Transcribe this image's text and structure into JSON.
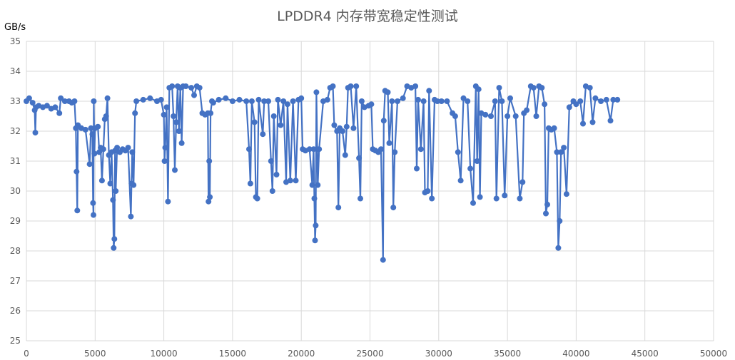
{
  "chart_data": {
    "type": "line",
    "title": "LPDDR4 内存带宽稳定性测试",
    "ylabel": "GB/s",
    "xlabel": "",
    "xlim": [
      0,
      50000
    ],
    "ylim": [
      25,
      35
    ],
    "x_ticks": [
      "0",
      "5000",
      "10000",
      "15000",
      "20000",
      "25000",
      "30000",
      "35000",
      "40000",
      "45000",
      "50000"
    ],
    "y_ticks": [
      "25",
      "26",
      "27",
      "28",
      "29",
      "30",
      "31",
      "32",
      "33",
      "34",
      "35"
    ],
    "grid": true,
    "legend": "none",
    "series": [
      {
        "color": "#4472c4",
        "marker": "circle",
        "points": [
          [
            0,
            33.0
          ],
          [
            200,
            33.1
          ],
          [
            450,
            32.95
          ],
          [
            600,
            32.7
          ],
          [
            650,
            31.95
          ],
          [
            700,
            32.8
          ],
          [
            900,
            32.85
          ],
          [
            1200,
            32.8
          ],
          [
            1500,
            32.85
          ],
          [
            1800,
            32.75
          ],
          [
            2100,
            32.8
          ],
          [
            2400,
            32.6
          ],
          [
            2500,
            33.1
          ],
          [
            2800,
            33.0
          ],
          [
            3100,
            33.0
          ],
          [
            3300,
            32.95
          ],
          [
            3500,
            33.0
          ],
          [
            3600,
            32.1
          ],
          [
            3650,
            30.65
          ],
          [
            3700,
            29.35
          ],
          [
            3750,
            32.2
          ],
          [
            4000,
            32.1
          ],
          [
            4300,
            32.05
          ],
          [
            4600,
            30.9
          ],
          [
            4700,
            32.1
          ],
          [
            4800,
            31.9
          ],
          [
            4850,
            29.6
          ],
          [
            4880,
            29.2
          ],
          [
            4900,
            33.0
          ],
          [
            4950,
            31.25
          ],
          [
            5000,
            32.1
          ],
          [
            5200,
            32.15
          ],
          [
            5300,
            31.3
          ],
          [
            5400,
            31.45
          ],
          [
            5500,
            30.35
          ],
          [
            5600,
            31.4
          ],
          [
            5700,
            32.4
          ],
          [
            5800,
            32.5
          ],
          [
            5900,
            33.1
          ],
          [
            6000,
            31.2
          ],
          [
            6100,
            30.25
          ],
          [
            6200,
            31.3
          ],
          [
            6300,
            29.7
          ],
          [
            6350,
            28.1
          ],
          [
            6400,
            28.4
          ],
          [
            6450,
            31.35
          ],
          [
            6500,
            30.0
          ],
          [
            6600,
            31.45
          ],
          [
            6800,
            31.3
          ],
          [
            7000,
            31.4
          ],
          [
            7200,
            31.35
          ],
          [
            7400,
            31.45
          ],
          [
            7600,
            29.15
          ],
          [
            7650,
            30.25
          ],
          [
            7700,
            31.3
          ],
          [
            7800,
            30.2
          ],
          [
            7900,
            32.6
          ],
          [
            8000,
            33.0
          ],
          [
            8500,
            33.05
          ],
          [
            9000,
            33.1
          ],
          [
            9500,
            33.0
          ],
          [
            9800,
            33.05
          ],
          [
            10000,
            32.55
          ],
          [
            10050,
            31.0
          ],
          [
            10100,
            31.45
          ],
          [
            10200,
            32.8
          ],
          [
            10300,
            29.65
          ],
          [
            10400,
            33.45
          ],
          [
            10600,
            33.5
          ],
          [
            10700,
            32.5
          ],
          [
            10800,
            30.7
          ],
          [
            10900,
            32.3
          ],
          [
            11000,
            33.5
          ],
          [
            11100,
            32.0
          ],
          [
            11200,
            33.45
          ],
          [
            11300,
            31.6
          ],
          [
            11400,
            33.5
          ],
          [
            11600,
            33.5
          ],
          [
            12000,
            33.45
          ],
          [
            12200,
            33.2
          ],
          [
            12400,
            33.5
          ],
          [
            12600,
            33.45
          ],
          [
            12800,
            32.6
          ],
          [
            13000,
            32.55
          ],
          [
            13200,
            32.6
          ],
          [
            13250,
            29.65
          ],
          [
            13300,
            31.0
          ],
          [
            13350,
            29.8
          ],
          [
            13400,
            32.6
          ],
          [
            13500,
            33.0
          ],
          [
            13600,
            32.95
          ],
          [
            14000,
            33.05
          ],
          [
            14500,
            33.1
          ],
          [
            15000,
            33.0
          ],
          [
            15500,
            33.05
          ],
          [
            16000,
            33.0
          ],
          [
            16200,
            31.4
          ],
          [
            16300,
            30.25
          ],
          [
            16400,
            33.0
          ],
          [
            16600,
            32.3
          ],
          [
            16700,
            29.8
          ],
          [
            16800,
            29.75
          ],
          [
            16900,
            33.05
          ],
          [
            17200,
            31.9
          ],
          [
            17300,
            33.0
          ],
          [
            17600,
            33.0
          ],
          [
            17800,
            31.0
          ],
          [
            17900,
            30.0
          ],
          [
            18000,
            32.5
          ],
          [
            18200,
            30.55
          ],
          [
            18300,
            33.05
          ],
          [
            18500,
            32.2
          ],
          [
            18700,
            33.0
          ],
          [
            18900,
            30.3
          ],
          [
            19000,
            32.9
          ],
          [
            19200,
            30.35
          ],
          [
            19400,
            33.0
          ],
          [
            19600,
            30.35
          ],
          [
            19800,
            33.05
          ],
          [
            20000,
            33.1
          ],
          [
            20100,
            31.4
          ],
          [
            20300,
            31.35
          ],
          [
            20600,
            31.4
          ],
          [
            20800,
            30.2
          ],
          [
            20900,
            31.4
          ],
          [
            20950,
            29.75
          ],
          [
            21000,
            28.35
          ],
          [
            21050,
            28.85
          ],
          [
            21100,
            33.3
          ],
          [
            21200,
            30.2
          ],
          [
            21300,
            31.4
          ],
          [
            21600,
            33.0
          ],
          [
            21900,
            33.05
          ],
          [
            22100,
            33.45
          ],
          [
            22300,
            33.5
          ],
          [
            22400,
            32.2
          ],
          [
            22600,
            32.0
          ],
          [
            22700,
            29.45
          ],
          [
            22800,
            32.1
          ],
          [
            23000,
            32.0
          ],
          [
            23200,
            31.2
          ],
          [
            23300,
            32.15
          ],
          [
            23400,
            33.45
          ],
          [
            23600,
            33.5
          ],
          [
            23800,
            32.1
          ],
          [
            24000,
            33.5
          ],
          [
            24200,
            31.1
          ],
          [
            24300,
            29.75
          ],
          [
            24400,
            33.0
          ],
          [
            24600,
            32.8
          ],
          [
            24900,
            32.85
          ],
          [
            25100,
            32.9
          ],
          [
            25200,
            31.4
          ],
          [
            25400,
            31.35
          ],
          [
            25600,
            31.3
          ],
          [
            25800,
            31.4
          ],
          [
            25950,
            27.7
          ],
          [
            26000,
            32.35
          ],
          [
            26100,
            33.35
          ],
          [
            26300,
            33.3
          ],
          [
            26400,
            31.6
          ],
          [
            26600,
            33.0
          ],
          [
            26700,
            29.45
          ],
          [
            26800,
            31.3
          ],
          [
            27000,
            33.0
          ],
          [
            27400,
            33.1
          ],
          [
            27700,
            33.5
          ],
          [
            28000,
            33.45
          ],
          [
            28300,
            33.5
          ],
          [
            28400,
            30.75
          ],
          [
            28500,
            33.05
          ],
          [
            28700,
            31.4
          ],
          [
            28900,
            33.0
          ],
          [
            29000,
            29.95
          ],
          [
            29200,
            30.0
          ],
          [
            29300,
            33.35
          ],
          [
            29500,
            29.75
          ],
          [
            29700,
            33.05
          ],
          [
            29900,
            33.0
          ],
          [
            30200,
            33.0
          ],
          [
            30600,
            33.0
          ],
          [
            31000,
            32.6
          ],
          [
            31200,
            32.5
          ],
          [
            31400,
            31.3
          ],
          [
            31600,
            30.35
          ],
          [
            31800,
            33.1
          ],
          [
            32100,
            33.0
          ],
          [
            32300,
            30.75
          ],
          [
            32500,
            29.6
          ],
          [
            32700,
            33.5
          ],
          [
            32800,
            31.0
          ],
          [
            32900,
            33.4
          ],
          [
            33000,
            29.8
          ],
          [
            33100,
            32.6
          ],
          [
            33400,
            32.55
          ],
          [
            33800,
            32.5
          ],
          [
            34100,
            33.0
          ],
          [
            34200,
            29.75
          ],
          [
            34400,
            33.45
          ],
          [
            34600,
            33.0
          ],
          [
            34800,
            29.85
          ],
          [
            35000,
            32.5
          ],
          [
            35200,
            33.1
          ],
          [
            35600,
            32.5
          ],
          [
            35900,
            29.75
          ],
          [
            36100,
            30.3
          ],
          [
            36200,
            32.6
          ],
          [
            36400,
            32.7
          ],
          [
            36700,
            33.5
          ],
          [
            36900,
            33.45
          ],
          [
            37100,
            32.5
          ],
          [
            37300,
            33.5
          ],
          [
            37500,
            33.45
          ],
          [
            37700,
            32.9
          ],
          [
            37800,
            29.25
          ],
          [
            37900,
            29.55
          ],
          [
            38000,
            32.1
          ],
          [
            38200,
            32.05
          ],
          [
            38400,
            32.1
          ],
          [
            38600,
            31.3
          ],
          [
            38700,
            28.1
          ],
          [
            38800,
            29.0
          ],
          [
            38900,
            31.3
          ],
          [
            39100,
            31.45
          ],
          [
            39300,
            29.9
          ],
          [
            39500,
            32.8
          ],
          [
            39800,
            33.0
          ],
          [
            40000,
            32.9
          ],
          [
            40300,
            33.0
          ],
          [
            40500,
            32.25
          ],
          [
            40700,
            33.5
          ],
          [
            41000,
            33.45
          ],
          [
            41200,
            32.3
          ],
          [
            41400,
            33.1
          ],
          [
            41800,
            33.0
          ],
          [
            42200,
            33.05
          ],
          [
            42500,
            32.35
          ],
          [
            42700,
            33.05
          ],
          [
            43000,
            33.05
          ]
        ]
      }
    ]
  }
}
